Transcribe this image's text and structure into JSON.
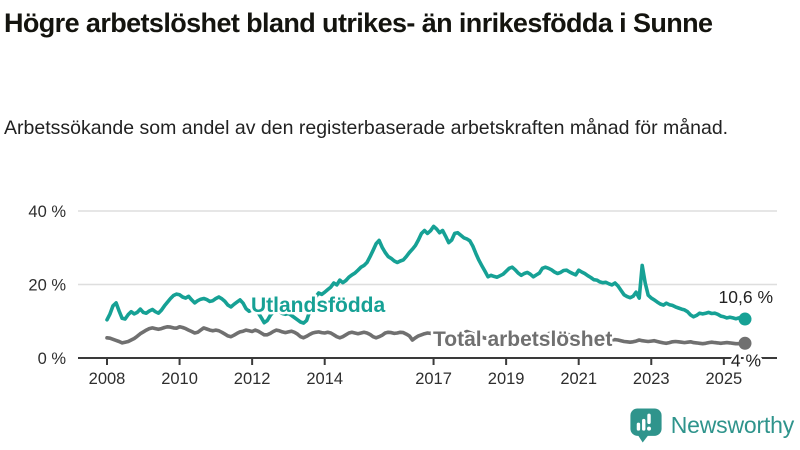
{
  "chart_data": {
    "type": "line",
    "title": "Högre arbetslöshet bland utrikes- än inrikesfödda i Sunne",
    "subtitle": "Arbetssökande som andel av den registerbaserade arbetskraften månad för månad.",
    "x_frequency": "monthly",
    "x_start": "2008-01",
    "x_end": "2025-08",
    "ylim": [
      0,
      44
    ],
    "grid": "horizontal-only",
    "yticks": [
      {
        "value": 0,
        "label": "0 %"
      },
      {
        "value": 20,
        "label": "20 %"
      },
      {
        "value": 40,
        "label": "40 %"
      }
    ],
    "xticks": [
      "2008",
      "2010",
      "2012",
      "2014",
      "2017",
      "2019",
      "2021",
      "2023",
      "2025"
    ],
    "series": [
      {
        "name": "Utlandsfödda",
        "color": "#16a195",
        "end_label": "10,6 %",
        "last_value": 10.6,
        "values": [
          10.4,
          12.0,
          14.2,
          15.0,
          12.8,
          10.8,
          10.6,
          11.8,
          12.6,
          12.0,
          12.4,
          13.3,
          12.4,
          12.2,
          12.8,
          13.2,
          12.6,
          12.2,
          13.0,
          14.2,
          15.2,
          16.2,
          17.0,
          17.4,
          17.2,
          16.6,
          16.3,
          16.8,
          15.8,
          15.0,
          15.6,
          16.0,
          16.2,
          15.9,
          15.4,
          15.6,
          16.2,
          16.6,
          16.1,
          15.4,
          14.4,
          13.9,
          14.6,
          15.2,
          15.8,
          14.9,
          13.4,
          12.7,
          13.1,
          12.9,
          12.3,
          11.0,
          9.6,
          10.2,
          11.6,
          12.6,
          13.1,
          12.6,
          12.1,
          11.9,
          12.1,
          11.6,
          11.0,
          10.4,
          9.8,
          9.5,
          10.2,
          12.6,
          15.0,
          16.6,
          17.7,
          17.3,
          17.9,
          18.6,
          19.3,
          20.4,
          19.9,
          21.2,
          20.5,
          21.1,
          22.0,
          22.6,
          23.1,
          23.9,
          24.7,
          25.2,
          26.0,
          27.6,
          29.3,
          31.1,
          32.0,
          30.1,
          28.7,
          27.6,
          27.1,
          26.4,
          26.0,
          26.4,
          26.7,
          27.6,
          28.7,
          29.6,
          30.6,
          32.1,
          33.9,
          34.7,
          33.9,
          34.6,
          35.8,
          35.1,
          34.1,
          34.7,
          33.1,
          31.4,
          32.1,
          33.9,
          34.1,
          33.4,
          32.7,
          32.4,
          31.9,
          30.4,
          28.4,
          26.6,
          25.1,
          23.6,
          22.1,
          22.5,
          22.2,
          22.0,
          22.4,
          22.8,
          23.6,
          24.4,
          24.7,
          24.0,
          23.1,
          22.5,
          23.0,
          23.3,
          22.8,
          22.1,
          22.6,
          23.1,
          24.4,
          24.7,
          24.4,
          24.0,
          23.4,
          23.0,
          23.3,
          23.8,
          23.9,
          23.4,
          23.0,
          22.6,
          23.9,
          23.4,
          23.0,
          22.4,
          21.9,
          21.3,
          21.2,
          20.7,
          20.5,
          20.6,
          20.2,
          19.9,
          20.4,
          19.6,
          18.4,
          17.2,
          16.7,
          16.4,
          16.8,
          17.9,
          16.3,
          25.2,
          20.4,
          17.1,
          16.3,
          15.8,
          15.2,
          14.7,
          14.4,
          14.9,
          14.5,
          14.3,
          13.9,
          13.6,
          13.3,
          13.1,
          12.6,
          11.7,
          11.2,
          11.6,
          12.2,
          12.0,
          12.2,
          12.4,
          12.1,
          12.2,
          11.9,
          11.4,
          11.2,
          10.9,
          11.1,
          10.9,
          10.7,
          10.9,
          10.7,
          10.6
        ]
      },
      {
        "name": "Total arbetslöshet",
        "color": "#707070",
        "end_label": "4 %",
        "last_value": 4.0,
        "values": [
          5.5,
          5.4,
          5.1,
          4.8,
          4.5,
          4.1,
          4.3,
          4.5,
          4.9,
          5.3,
          5.9,
          6.6,
          7.1,
          7.6,
          8.0,
          8.2,
          8.0,
          7.8,
          8.0,
          8.3,
          8.5,
          8.4,
          8.2,
          8.1,
          8.5,
          8.3,
          8.0,
          7.6,
          7.2,
          6.8,
          7.0,
          7.6,
          8.2,
          7.9,
          7.6,
          7.4,
          7.6,
          7.4,
          7.0,
          6.5,
          6.0,
          5.8,
          6.2,
          6.7,
          7.1,
          7.3,
          7.6,
          7.4,
          7.2,
          7.6,
          7.3,
          6.8,
          6.3,
          6.3,
          6.7,
          7.2,
          7.6,
          7.4,
          7.1,
          6.9,
          7.1,
          7.3,
          7.0,
          6.5,
          5.8,
          5.5,
          5.9,
          6.4,
          6.8,
          7.0,
          7.1,
          6.9,
          6.8,
          7.0,
          6.8,
          6.3,
          5.8,
          5.5,
          5.8,
          6.3,
          6.8,
          7.0,
          6.8,
          6.6,
          6.8,
          7.0,
          6.8,
          6.4,
          5.8,
          5.5,
          5.8,
          6.2,
          6.8,
          7.0,
          6.9,
          6.7,
          6.8,
          7.0,
          6.9,
          6.5,
          6.0,
          4.9,
          5.5,
          6.0,
          6.3,
          6.6,
          6.8,
          6.7,
          7.1,
          7.0,
          6.8,
          6.5,
          6.2,
          5.5,
          5.8,
          6.2,
          6.5,
          6.8,
          6.8,
          7.2,
          6.9,
          6.6,
          6.3,
          6.0,
          5.7,
          5.4,
          5.5,
          5.7,
          5.9,
          5.8,
          5.7,
          5.6,
          5.7,
          5.8,
          5.6,
          5.4,
          5.2,
          5.0,
          5.2,
          5.4,
          5.5,
          5.4,
          5.3,
          5.5,
          5.9,
          6.2,
          6.6,
          6.9,
          7.0,
          6.9,
          6.8,
          6.7,
          6.5,
          6.3,
          6.1,
          6.0,
          6.0,
          5.9,
          5.7,
          5.5,
          5.2,
          5.0,
          5.1,
          5.2,
          5.3,
          5.2,
          5.0,
          4.9,
          5.0,
          4.9,
          4.7,
          4.5,
          4.4,
          4.3,
          4.4,
          4.6,
          4.9,
          4.7,
          4.6,
          4.5,
          4.6,
          4.7,
          4.5,
          4.3,
          4.1,
          4.0,
          4.2,
          4.4,
          4.5,
          4.4,
          4.3,
          4.2,
          4.3,
          4.4,
          4.2,
          4.1,
          4.0,
          3.9,
          4.0,
          4.2,
          4.3,
          4.2,
          4.1,
          4.0,
          4.1,
          4.2,
          4.1,
          4.0,
          3.9,
          3.9,
          4.0,
          4.0
        ]
      }
    ]
  },
  "colors": {
    "accent_teal": "#16a195",
    "series_gray": "#707070",
    "grid": "#dedede",
    "axis": "#3a3a3a",
    "axis_text": "#2e2e2e",
    "annotation_text": "#222222",
    "logo_teal": "#2f948c"
  },
  "footer": {
    "brand": "Newsworthy"
  }
}
